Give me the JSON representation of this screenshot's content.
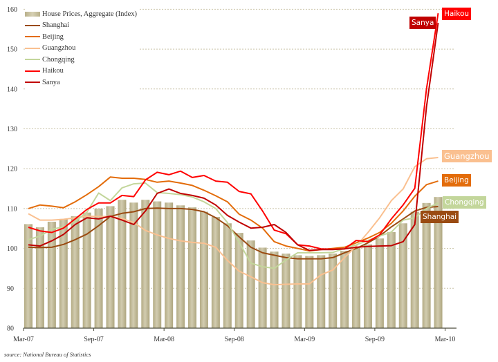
{
  "chart_data": {
    "type": "bar+line",
    "categories": [
      "Mar-07",
      "Apr-07",
      "May-07",
      "Jun-07",
      "Jul-07",
      "Aug-07",
      "Sep-07",
      "Oct-07",
      "Nov-07",
      "Dec-07",
      "Jan-08",
      "Feb-08",
      "Mar-08",
      "Apr-08",
      "May-08",
      "Jun-08",
      "Jul-08",
      "Aug-08",
      "Sep-08",
      "Oct-08",
      "Nov-08",
      "Dec-08",
      "Jan-09",
      "Feb-09",
      "Mar-09",
      "Apr-09",
      "May-09",
      "Jun-09",
      "Jul-09",
      "Aug-09",
      "Sep-09",
      "Oct-09",
      "Nov-09",
      "Dec-09",
      "Jan-10",
      "Feb-10"
    ],
    "x_ticks": [
      "Mar-07",
      "Sep-07",
      "Mar-08",
      "Sep-08",
      "Mar-09",
      "Sep-09",
      "Mar-10"
    ],
    "y_ticks": [
      80,
      90,
      100,
      110,
      120,
      130,
      140,
      150,
      160
    ],
    "ylim": [
      80,
      160
    ],
    "grid": "horizontal dotted",
    "legend": "top-left",
    "bars": {
      "name": "House Prices, Aggregate (Index)",
      "color": "#c4bd97",
      "values": [
        106.1,
        105.3,
        106.7,
        107.4,
        108.1,
        109.0,
        110.0,
        110.6,
        112.2,
        111.5,
        112.2,
        111.8,
        111.5,
        110.8,
        110.3,
        109.2,
        107.9,
        106.3,
        103.9,
        102.0,
        100.2,
        99.2,
        98.7,
        98.3,
        98.1,
        98.3,
        98.7,
        99.4,
        100.2,
        101.0,
        102.5,
        104.1,
        106.3,
        109.2,
        111.4,
        112.9
      ]
    },
    "series": [
      {
        "name": "Shanghai",
        "color": "#9a4b12",
        "values": [
          100.3,
          100.2,
          100.3,
          101,
          102.2,
          103.6,
          105.7,
          108,
          108.8,
          109.2,
          110,
          110.1,
          110,
          110,
          109.8,
          109.2,
          107.7,
          105.7,
          102.9,
          100.3,
          98.9,
          98.3,
          97.7,
          97.4,
          97.4,
          97.4,
          97.7,
          98.9,
          100,
          101.4,
          103.1,
          105.4,
          107.4,
          109.4,
          110.3,
          110.5
        ]
      },
      {
        "name": "Beijing",
        "color": "#e36c0a",
        "values": [
          110,
          110.9,
          110.6,
          110.2,
          111.7,
          113.5,
          115.5,
          117.9,
          117.6,
          117.6,
          117.3,
          116.6,
          116.9,
          116.4,
          115.8,
          114.6,
          113.2,
          111.7,
          108.6,
          107.1,
          105.1,
          101.7,
          100.6,
          100,
          99.4,
          99.7,
          100,
          100.3,
          101.4,
          102.6,
          104,
          106.3,
          109.4,
          113.1,
          116,
          116.9
        ]
      },
      {
        "name": "Guangzhou",
        "color": "#fac090",
        "values": [
          108.7,
          107.1,
          107.1,
          107.3,
          107.7,
          108.1,
          108,
          108,
          107.5,
          106.5,
          104.5,
          103.4,
          102.5,
          101.9,
          101.5,
          101.3,
          100.3,
          97,
          94.3,
          92.9,
          91.4,
          90.9,
          91,
          91.1,
          91.1,
          93.4,
          94.6,
          97.7,
          100.6,
          104,
          107.7,
          112,
          114.9,
          120.5,
          122.5,
          122.8
        ]
      },
      {
        "name": "Chongqing",
        "color": "#c3d69b",
        "values": [
          102.2,
          103.1,
          104.8,
          105.4,
          106.8,
          109.1,
          113.9,
          112,
          115.2,
          116.2,
          116.4,
          114,
          113.8,
          113.5,
          112.9,
          111.7,
          110,
          106.5,
          101.5,
          96.3,
          95.4,
          95,
          97.1,
          98.9,
          98.9,
          98.9,
          99,
          100,
          100.9,
          102,
          103.1,
          104.1,
          107.1,
          107.7,
          110,
          111.4
        ]
      },
      {
        "name": "Haikou",
        "color": "#ff0000",
        "values": [
          105.3,
          104.4,
          104,
          105.1,
          107.4,
          109.8,
          111.4,
          111.4,
          113.3,
          113,
          117.2,
          119.1,
          118.5,
          119.4,
          117.8,
          118.3,
          116.9,
          116.6,
          114.3,
          113.7,
          109.4,
          104.6,
          103.7,
          100.9,
          100.6,
          99.9,
          99.8,
          99.9,
          102,
          101.7,
          103.4,
          107.4,
          110.9,
          115.1,
          140,
          159
        ]
      },
      {
        "name": "Sanya",
        "color": "#c00000",
        "values": [
          100.9,
          100.6,
          101.9,
          103.5,
          106,
          107.7,
          107.4,
          108.1,
          107.1,
          106,
          109.4,
          113.8,
          114.9,
          113.8,
          113.3,
          112.6,
          110.9,
          108.3,
          106.6,
          105.1,
          105.3,
          106,
          104,
          100.9,
          99.5,
          99.7,
          99.7,
          99.9,
          100.3,
          100.5,
          100.6,
          100.7,
          101.7,
          106,
          135.5,
          156.6
        ]
      }
    ],
    "end_labels": [
      "Haikou",
      "Sanya",
      "Guangzhou",
      "Beijing",
      "Chongqing",
      "Shanghai"
    ]
  },
  "source": "source:  National Bureau of Statistics"
}
